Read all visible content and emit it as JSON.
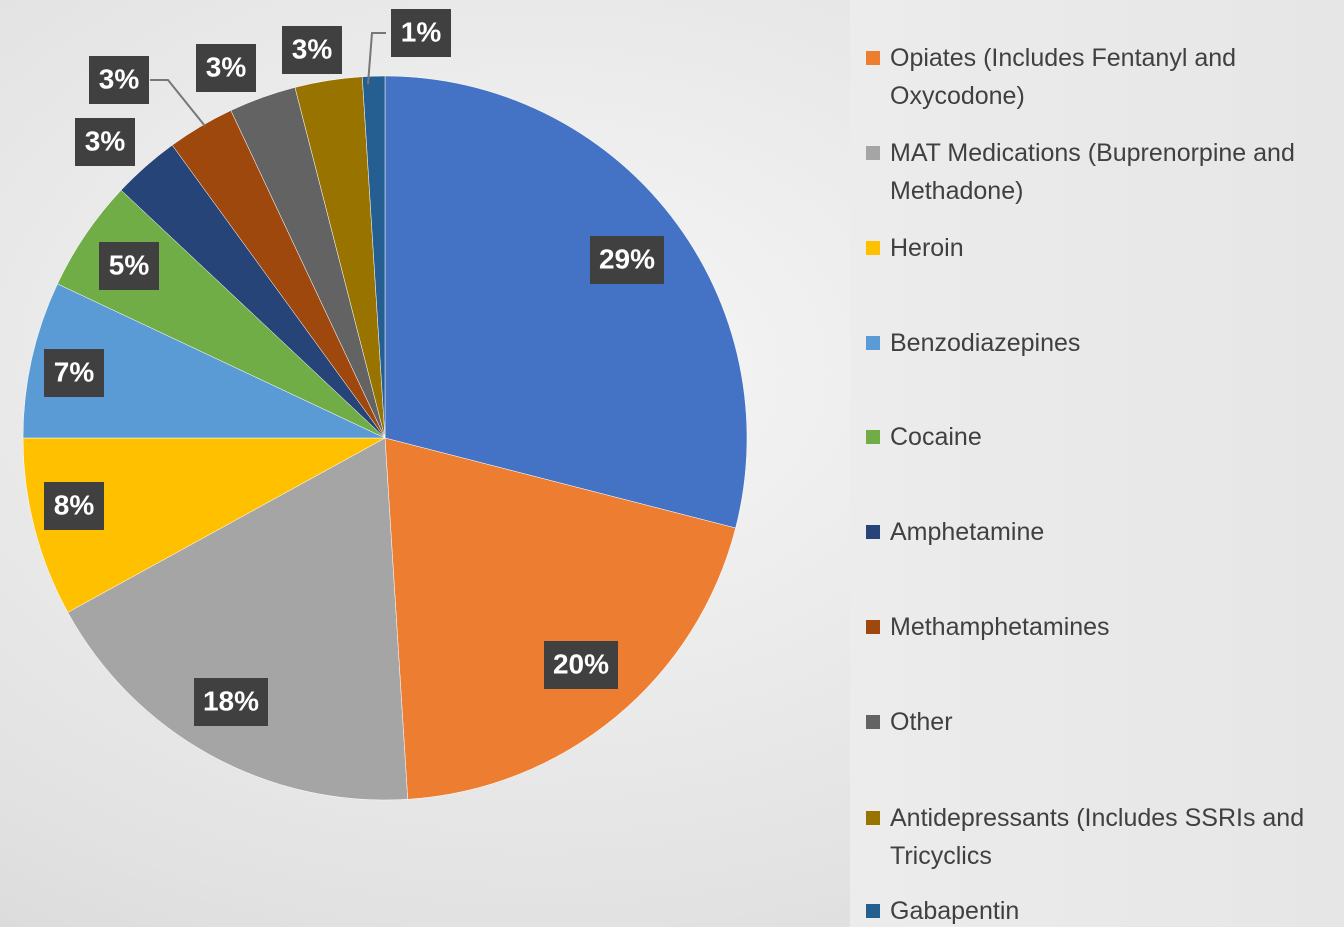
{
  "chart_data": {
    "type": "pie",
    "categories": [
      null,
      "Opiates (Includes Fentanyl and Oxycodone)",
      "MAT Medications (Buprenorpine and Methadone)",
      "Heroin",
      "Benzodiazepines",
      "Cocaine",
      "Amphetamine",
      "Methamphetamines",
      "Other",
      "Antidepressants (Includes SSRIs and Tricyclics",
      "Gabapentin"
    ],
    "values": [
      29,
      20,
      18,
      8,
      7,
      5,
      3,
      3,
      3,
      3,
      1
    ],
    "value_labels": [
      "29%",
      "20%",
      "18%",
      "8%",
      "7%",
      "5%",
      "3%",
      "3%",
      "3%",
      "3%",
      "1%"
    ],
    "colors": [
      "#4472c4",
      "#ed7d31",
      "#a5a5a5",
      "#ffc000",
      "#5b9bd5",
      "#70ad47",
      "#264478",
      "#9e480e",
      "#636363",
      "#997300",
      "#255e91"
    ],
    "legend": "right"
  }
}
